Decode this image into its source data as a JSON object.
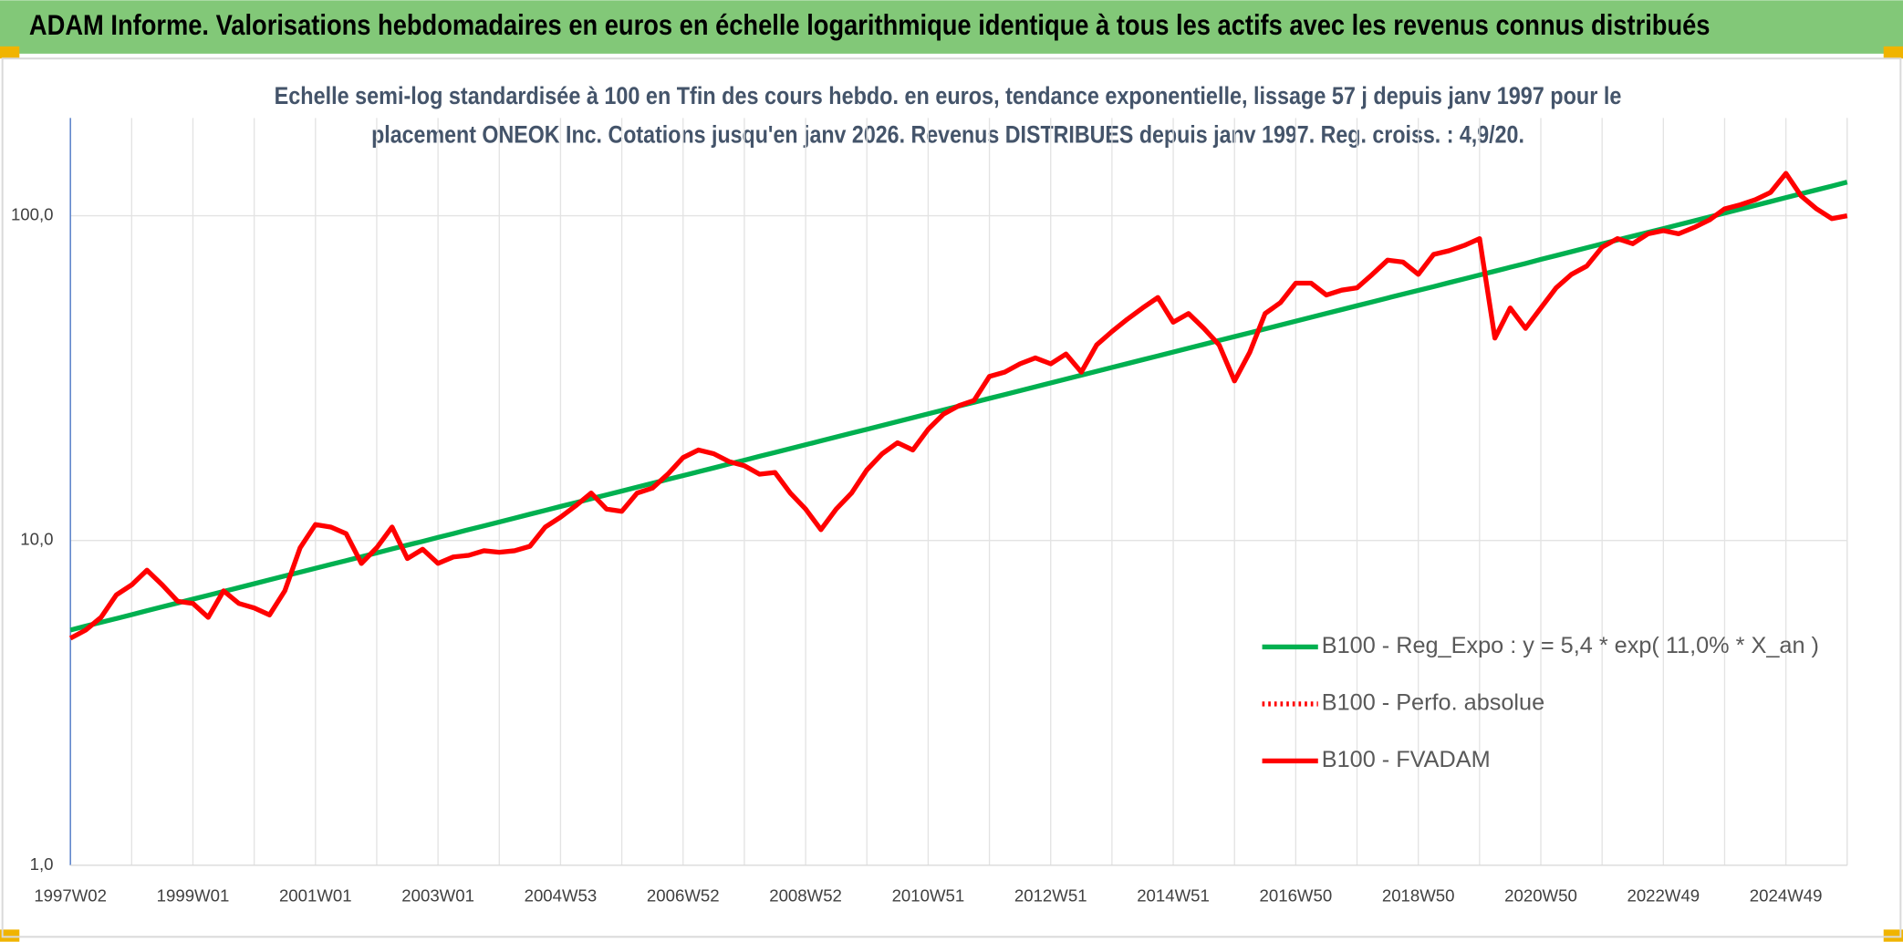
{
  "chart_data": {
    "type": "line",
    "title": "ADAM Informe. Valorisations hebdomadaires en euros en échelle logarithmique identique à tous les actifs avec les revenus connus distribués",
    "subtitle_lines": [
      "Echelle semi-log standardisée à 100 en Tfin des cours hebdo. en euros, tendance exponentielle, lissage 57 j depuis janv 1997 pour le",
      "placement ONEOK Inc. Cotations jusqu'en janv 2026. Revenus DISTRIBUES depuis janv 1997. Reg. croiss. : 4,9/20."
    ],
    "categories": [
      "1997W02",
      null,
      null,
      null,
      null,
      null,
      null,
      null,
      "1999W01",
      null,
      null,
      null,
      null,
      null,
      null,
      null,
      "2001W01",
      null,
      null,
      null,
      null,
      null,
      null,
      null,
      "2003W01",
      null,
      null,
      null,
      null,
      null,
      null,
      null,
      "2004W53",
      null,
      null,
      null,
      null,
      null,
      null,
      null,
      "2006W52",
      null,
      null,
      null,
      null,
      null,
      null,
      null,
      "2008W52",
      null,
      null,
      null,
      null,
      null,
      null,
      null,
      "2010W51",
      null,
      null,
      null,
      null,
      null,
      null,
      null,
      "2012W51",
      null,
      null,
      null,
      null,
      null,
      null,
      null,
      "2014W51",
      null,
      null,
      null,
      null,
      null,
      null,
      null,
      "2016W50",
      null,
      null,
      null,
      null,
      null,
      null,
      null,
      "2018W50",
      null,
      null,
      null,
      null,
      null,
      null,
      null,
      "2020W50",
      null,
      null,
      null,
      null,
      null,
      null,
      null,
      "2022W49",
      null,
      null,
      null,
      null,
      null,
      null,
      null,
      "2024W49",
      null,
      null,
      null,
      null
    ],
    "series": [
      {
        "name": "B100 - Reg_Expo : y = 5,4 * exp( 11,0% *  X_an )",
        "color": "#00b050",
        "style": "solid",
        "values": [
          5.3,
          5.45,
          5.6,
          5.75,
          5.91,
          6.08,
          6.25,
          6.42,
          6.6,
          6.78,
          6.97,
          7.16,
          7.36,
          7.57,
          7.78,
          7.99,
          8.21,
          8.44,
          8.67,
          8.91,
          9.16,
          9.42,
          9.68,
          9.94,
          10.22,
          10.5,
          10.8,
          11.09,
          11.4,
          11.72,
          12.05,
          12.38,
          12.73,
          13.08,
          13.45,
          13.82,
          14.2,
          14.6,
          15.0,
          15.42,
          15.84,
          16.28,
          16.73,
          17.2,
          17.67,
          18.17,
          18.67,
          19.19,
          19.72,
          20.27,
          20.83,
          21.41,
          22.0,
          22.61,
          23.24,
          23.89,
          24.55,
          25.23,
          25.93,
          26.65,
          27.39,
          28.15,
          28.93,
          29.74,
          30.56,
          31.41,
          32.28,
          33.18,
          34.1,
          35.05,
          36.02,
          37.02,
          38.04,
          39.1,
          40.18,
          41.3,
          42.45,
          43.62,
          44.83,
          46.08,
          47.35,
          48.67,
          50.02,
          51.4,
          52.83,
          54.3,
          55.81,
          57.35,
          58.9,
          60.5,
          62.2,
          63.9,
          65.7,
          67.5,
          69.4,
          71.3,
          73.4,
          75.4,
          77.5,
          79.7,
          81.9,
          84.2,
          86.5,
          88.9,
          91.3,
          93.8,
          96.4,
          99.1,
          101.9,
          104.7,
          107.6,
          110.6,
          113.7,
          116.9,
          120.1,
          123.4,
          126.9
        ]
      },
      {
        "name": "B100 - Perfo. absolue",
        "color": "#ff0000",
        "style": "dotted",
        "values": [
          null,
          null,
          null,
          null,
          null,
          null,
          null,
          null,
          null,
          null,
          null,
          null,
          null,
          null,
          null,
          null,
          null,
          null,
          null,
          null,
          null,
          null,
          null,
          null,
          null,
          null,
          null,
          null,
          null,
          null,
          null,
          null,
          null,
          null,
          null,
          null,
          null,
          null,
          null,
          null,
          null,
          null,
          null,
          null,
          null,
          null,
          null,
          null,
          null,
          null,
          null,
          null,
          null,
          null,
          null,
          null,
          null,
          null,
          null,
          null,
          null,
          null,
          null,
          null,
          null,
          null,
          null,
          null,
          null,
          null,
          null,
          null,
          null,
          null,
          null,
          null,
          null,
          null,
          null,
          null,
          null,
          null,
          null,
          null,
          null,
          null,
          null,
          null,
          null,
          null,
          null,
          null,
          null,
          null,
          null,
          null,
          null,
          null,
          null,
          null,
          null,
          null,
          null,
          null,
          null,
          null,
          null,
          null,
          null,
          null,
          null,
          null,
          null,
          null,
          null,
          null,
          null
        ]
      },
      {
        "name": "B100 - FVADAM",
        "color": "#ff0000",
        "style": "solid",
        "values": [
          5.0,
          5.3,
          5.8,
          6.8,
          7.3,
          8.1,
          7.3,
          6.5,
          6.4,
          5.8,
          7.0,
          6.4,
          6.2,
          5.9,
          7.0,
          9.5,
          11.2,
          11.0,
          10.5,
          8.5,
          9.5,
          11.0,
          8.8,
          9.4,
          8.5,
          8.9,
          9.0,
          9.3,
          9.2,
          9.3,
          9.6,
          11.0,
          11.8,
          12.8,
          14.0,
          12.5,
          12.3,
          14.0,
          14.5,
          16.0,
          18.0,
          19.0,
          18.5,
          17.5,
          17.0,
          16.0,
          16.2,
          14.0,
          12.5,
          10.8,
          12.5,
          14.0,
          16.5,
          18.5,
          20.0,
          19.0,
          22.0,
          24.5,
          26.0,
          27.0,
          32.0,
          33.0,
          35.0,
          36.5,
          35.0,
          37.5,
          33.0,
          40.0,
          44.0,
          48.0,
          52.0,
          56.0,
          47.0,
          50.0,
          45.0,
          40.0,
          31.0,
          38.0,
          50.0,
          54.0,
          62.0,
          62.0,
          57.0,
          59.0,
          60.0,
          66.0,
          73.0,
          72.0,
          66.0,
          76.0,
          78.0,
          81.0,
          85.0,
          42.0,
          52.0,
          45.0,
          52.0,
          60.0,
          66.0,
          70.0,
          80.0,
          85.0,
          82.0,
          88.0,
          90.0,
          88.0,
          92.0,
          97.0,
          105.0,
          108.0,
          112.0,
          118.0,
          135.0,
          115.0,
          105.0,
          98.0,
          100.0
        ]
      }
    ],
    "ylim": [
      1,
      200
    ],
    "yticks": [
      {
        "value": 1,
        "label": "1,0"
      },
      {
        "value": 10,
        "label": "10,0"
      },
      {
        "value": 100,
        "label": "100,0"
      }
    ],
    "log_scale": true,
    "grid": true,
    "legend_position": "right"
  }
}
